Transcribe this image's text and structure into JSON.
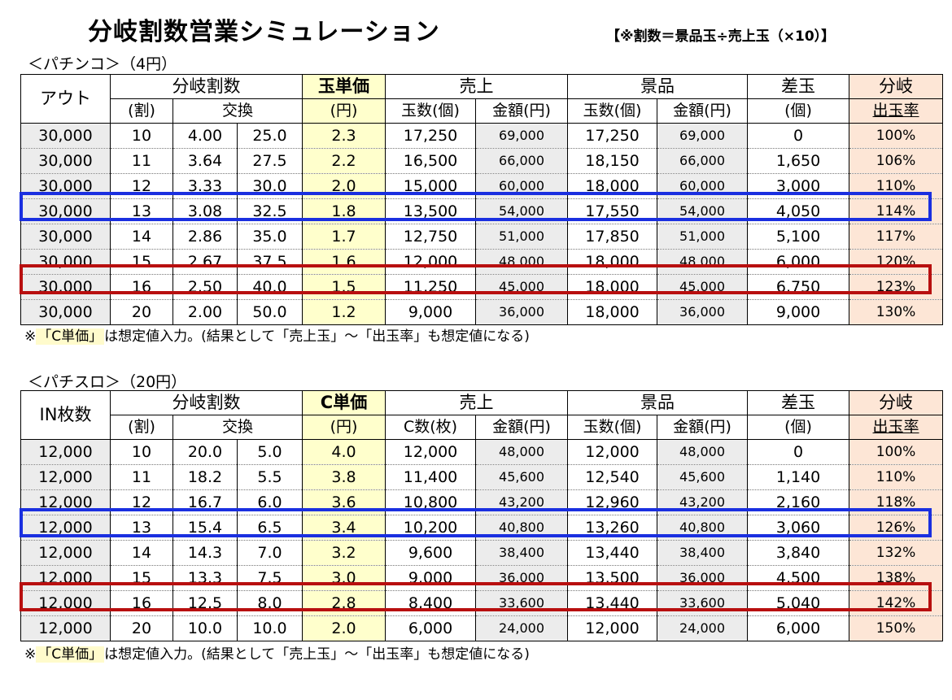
{
  "title": "分岐割数営業シミュレーション",
  "formula": "【※割数＝景品玉÷売上玉（×10）】",
  "colors": {
    "highlight_blue": "#1a2fe0",
    "highlight_red": "#b80f0f",
    "price_column": "#ffffcc",
    "rate_column": "#fde6d6"
  },
  "pachinko": {
    "section_label": "＜パチンコ＞（4円）",
    "headers": {
      "first_col": "アウト",
      "bunki_warisu": "分岐割数",
      "wari": "(割)",
      "koukan": "交換",
      "unit_price": "玉単価",
      "unit_price_sub": "(円)",
      "uriage": "売上",
      "uriage_count": "玉数(個)",
      "uriage_amount": "金額(円)",
      "keihin": "景品",
      "keihin_count": "玉数(個)",
      "keihin_amount": "金額(円)",
      "sadama": "差玉",
      "sadama_sub": "(個)",
      "rate_top": "分岐",
      "rate_bottom": "出玉率"
    },
    "rows": [
      [
        "30,000",
        "10",
        "4.00",
        "25.0",
        "2.3",
        "17,250",
        "69,000",
        "17,250",
        "69,000",
        "0",
        "100%"
      ],
      [
        "30,000",
        "11",
        "3.64",
        "27.5",
        "2.2",
        "16,500",
        "66,000",
        "18,150",
        "66,000",
        "1,650",
        "106%"
      ],
      [
        "30,000",
        "12",
        "3.33",
        "30.0",
        "2.0",
        "15,000",
        "60,000",
        "18,000",
        "60,000",
        "3,000",
        "110%"
      ],
      [
        "30,000",
        "13",
        "3.08",
        "32.5",
        "1.8",
        "13,500",
        "54,000",
        "17,550",
        "54,000",
        "4,050",
        "114%"
      ],
      [
        "30,000",
        "14",
        "2.86",
        "35.0",
        "1.7",
        "12,750",
        "51,000",
        "17,850",
        "51,000",
        "5,100",
        "117%"
      ],
      [
        "30,000",
        "15",
        "2.67",
        "37.5",
        "1.6",
        "12,000",
        "48,000",
        "18,000",
        "48,000",
        "6,000",
        "120%"
      ],
      [
        "30,000",
        "16",
        "2.50",
        "40.0",
        "1.5",
        "11,250",
        "45,000",
        "18,000",
        "45,000",
        "6,750",
        "123%"
      ],
      [
        "30,000",
        "20",
        "2.00",
        "50.0",
        "1.2",
        "9,000",
        "36,000",
        "18,000",
        "36,000",
        "9,000",
        "130%"
      ]
    ],
    "note_prefix": "※",
    "note_highlight": "「C単価」",
    "note_rest": "は想定値入力。(結果として「売上玉」～「出玉率」も想定値になる)"
  },
  "pachislot": {
    "section_label": "＜パチスロ＞（20円）",
    "headers": {
      "first_col": "IN枚数",
      "bunki_warisu": "分岐割数",
      "wari": "(割)",
      "koukan": "交換",
      "unit_price": "C単価",
      "unit_price_sub": "(円)",
      "uriage": "売上",
      "uriage_count": "C数(枚)",
      "uriage_amount": "金額(円)",
      "keihin": "景品",
      "keihin_count": "玉数(個)",
      "keihin_amount": "金額(円)",
      "sadama": "差玉",
      "sadama_sub": "(個)",
      "rate_top": "分岐",
      "rate_bottom": "出玉率"
    },
    "rows": [
      [
        "12,000",
        "10",
        "20.0",
        "5.0",
        "4.0",
        "12,000",
        "48,000",
        "12,000",
        "48,000",
        "0",
        "100%"
      ],
      [
        "12,000",
        "11",
        "18.2",
        "5.5",
        "3.8",
        "11,400",
        "45,600",
        "12,540",
        "45,600",
        "1,140",
        "110%"
      ],
      [
        "12,000",
        "12",
        "16.7",
        "6.0",
        "3.6",
        "10,800",
        "43,200",
        "12,960",
        "43,200",
        "2,160",
        "118%"
      ],
      [
        "12,000",
        "13",
        "15.4",
        "6.5",
        "3.4",
        "10,200",
        "40,800",
        "13,260",
        "40,800",
        "3,060",
        "126%"
      ],
      [
        "12,000",
        "14",
        "14.3",
        "7.0",
        "3.2",
        "9,600",
        "38,400",
        "13,440",
        "38,400",
        "3,840",
        "132%"
      ],
      [
        "12,000",
        "15",
        "13.3",
        "7.5",
        "3.0",
        "9,000",
        "36,000",
        "13,500",
        "36,000",
        "4,500",
        "138%"
      ],
      [
        "12,000",
        "16",
        "12.5",
        "8.0",
        "2.8",
        "8,400",
        "33,600",
        "13,440",
        "33,600",
        "5,040",
        "142%"
      ],
      [
        "12,000",
        "20",
        "10.0",
        "10.0",
        "2.0",
        "6,000",
        "24,000",
        "12,000",
        "24,000",
        "6,000",
        "150%"
      ]
    ],
    "note_prefix": "※",
    "note_highlight": "「C単価」",
    "note_rest": "は想定値入力。(結果として「売上玉」～「出玉率」も想定値になる)"
  }
}
